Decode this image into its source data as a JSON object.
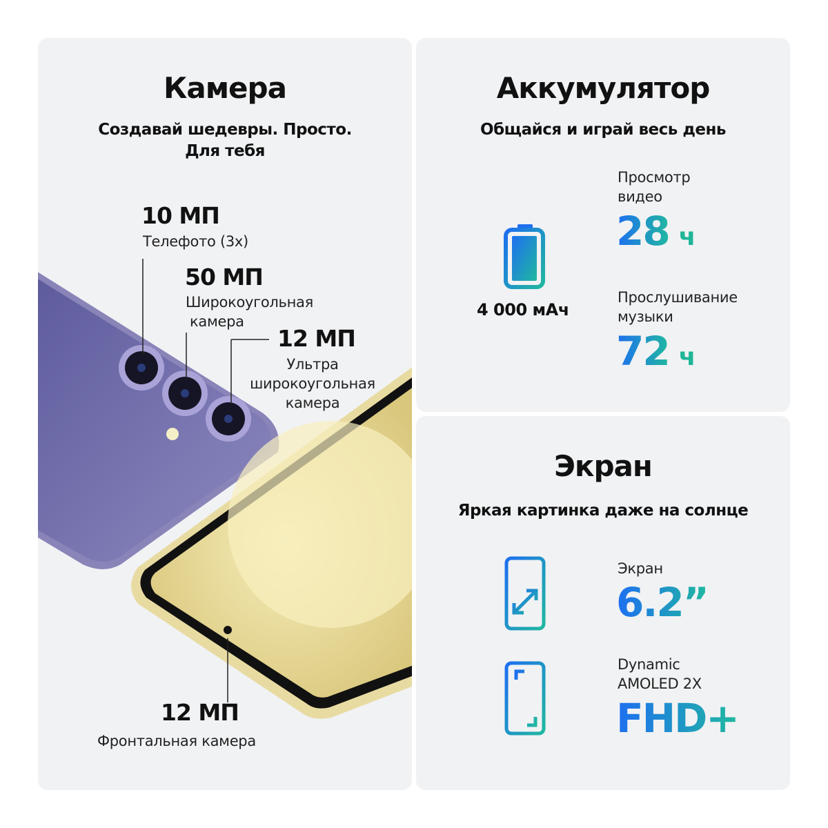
{
  "camera": {
    "title": "Камера",
    "subtitle_line1": "Создавай шедевры. Просто.",
    "subtitle_line2": "Для тебя",
    "telephoto": {
      "mp": "10 МП",
      "label": "Телефото (3x)"
    },
    "wide": {
      "mp": "50 МП",
      "label_line1": "Широкоугольная",
      "label_line2": "камера"
    },
    "ultrawide": {
      "mp": "12 МП",
      "label_line1": "Ультра",
      "label_line2": "широкоугольная",
      "label_line3": "камера"
    },
    "front": {
      "mp": "12 МП",
      "label": "Фронтальная камера"
    }
  },
  "battery": {
    "title": "Аккумулятор",
    "subtitle": "Общайся и играй весь день",
    "capacity": "4 000 мАч",
    "icon": "battery-full-icon",
    "video": {
      "label_line1": "Просмотр",
      "label_line2": "видео",
      "value": "28",
      "unit": "ч"
    },
    "music": {
      "label_line1": "Прослушивание",
      "label_line2": "музыки",
      "value": "72",
      "unit": "ч"
    }
  },
  "screen": {
    "title": "Экран",
    "subtitle": "Яркая картинка даже на солнце",
    "size": {
      "label": "Экран",
      "value": "6.2”",
      "icon": "screen-diagonal-icon"
    },
    "display": {
      "label_line1": "Dynamic",
      "label_line2": "AMOLED 2X",
      "value": "FHD+",
      "icon": "screen-corners-icon"
    }
  },
  "colors": {
    "panel": "#f1f2f4",
    "gradient_start": "#1e6ff0",
    "gradient_end": "#20b8a0",
    "phone_back": "#6d6aa8",
    "phone_front": "#efe2a8"
  }
}
